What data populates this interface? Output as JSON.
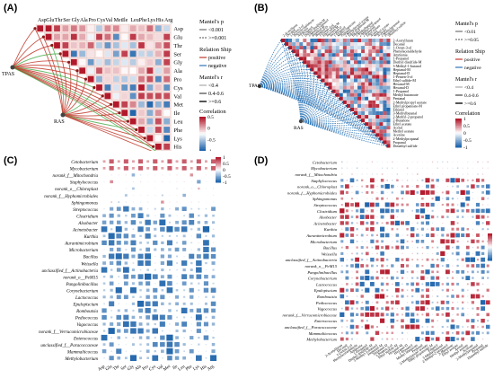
{
  "panels": {
    "A": {
      "label": "(A)",
      "column_labels": [
        "Asp",
        "Glu",
        "Thr",
        "Ser",
        "Gly",
        "Ala",
        "Pro",
        "Cys",
        "Val",
        "Met",
        "Ile",
        "Leu",
        "Phe",
        "Lys",
        "His",
        "Arg"
      ],
      "row_labels": [
        "Asp",
        "Glu",
        "Thr",
        "Ser",
        "Gly",
        "Ala",
        "Pro",
        "Cys",
        "Val",
        "Met",
        "Ile",
        "Leu",
        "Phe",
        "Lys",
        "His",
        "Arg"
      ],
      "nodes": [
        "TPAS",
        "RAS"
      ],
      "legend": {
        "mantel_p_title": "Mantel's p",
        "mantel_p_items": [
          "<0.001",
          ">=0.001"
        ],
        "relationship_title": "Relation Ship",
        "relationship_items": [
          "positive",
          "negative"
        ],
        "mantel_r_title": "Mantel's r",
        "mantel_r_items": [
          "<0.4",
          "0.4-0.6",
          ">=0.6"
        ],
        "correlation_title": "Correlation",
        "correlation_ticks": [
          "0.5",
          "0",
          "-0.5",
          "-1"
        ]
      }
    },
    "B": {
      "label": "(B)",
      "row_labels": [
        "2-Acetylfuran",
        "Decanal",
        "1-Octen-3-ol",
        "Phenylacetaldehyde",
        "Ammonia",
        "1-Propanol",
        "Diethyl disulfide-M",
        "3-Methyl-1-butanol",
        "Heptanal-M",
        "Heptanal-D",
        "1-Penten-3-ol",
        "Ethyl sulfide-M",
        "Hexanal-M",
        "Hexanal-D",
        "1-Propanol",
        "Methyl butanoate",
        "Pentanal",
        "2-Methylpropyl acetate",
        "Ethyl propanoate-M",
        "Ethanol",
        "3-Methylbutanal",
        "2-Methyl-2-propanol",
        "2-Butanone",
        "Ethyl acetate",
        "Acetal",
        "Methyl acetate",
        "Acetone",
        "2-Methylpropanal",
        "Propanal",
        "Dimethyl sulfide"
      ],
      "nodes": [
        "TPAS",
        "RAS"
      ],
      "legend": {
        "mantel_p_title": "Mantel's p",
        "mantel_p_items": [
          "<0.01",
          ">=0.05"
        ],
        "relationship_title": "Relation Ship",
        "relationship_items": [
          "positive",
          "negative"
        ],
        "mantel_r_title": "Mantel's r",
        "mantel_r_items": [
          "<0.4",
          "0.4-0.6",
          ">=0.6"
        ],
        "correlation_title": "Correlation",
        "correlation_ticks": [
          "1",
          "0.5",
          "0",
          "-0.5",
          "-1"
        ]
      }
    },
    "C": {
      "label": "(C)",
      "row_labels": [
        "Cetobacterium",
        "Mycobacterium",
        "norank_f__Mitochondria",
        "Staphylococcus",
        "norank_o__Chloroplast",
        "norank_f__Hyphomicrobiales",
        "Sphingomonas",
        "Streptococcus",
        "Clostridium",
        "Alsobacter",
        "Acinetobacter",
        "Kurthia",
        "Aurantimicrobium",
        "Microbacterium",
        "Bacillus",
        "Weissella",
        "unclassified_f__Actinobacteria",
        "norank_o__PeM15",
        "Pangolinibacillus",
        "Corynebacterium",
        "Lactococcus",
        "Epulopiscium",
        "Romboutsia",
        "Pediococcus",
        "Vagococcus",
        "norank_f__Verrucomicrobiaceae",
        "Enterococcus",
        "unclassified_f__Paracoccaceae",
        "Mammaliicoccus",
        "Methylobacterium"
      ],
      "column_labels": [
        "Asp",
        "Glu",
        "Thr",
        "Ser",
        "Gly",
        "Ala",
        "Pro",
        "Cys",
        "Val",
        "Met",
        "Ile",
        "Leu",
        "Phe",
        "Lys",
        "His",
        "Arg"
      ],
      "colorbar_ticks": [
        "1",
        "0.5",
        "0",
        "-0.5",
        "-1"
      ]
    },
    "D": {
      "label": "(D)",
      "row_labels": [
        "Cetobacterium",
        "Mycobacterium",
        "norank_f__Mitochondria",
        "Staphylococcus",
        "norank_o__Chloroplast",
        "norank_f__Hyphomicrobiales",
        "Sphingomonas",
        "Streptococcus",
        "Clostridium",
        "Alsobacter",
        "Acinetobacter",
        "Kurthia",
        "Aurantimicrobium",
        "Microbacterium",
        "Bacillus",
        "Weissella",
        "unclassified_f__Actinobacteria",
        "norank_o__PeM15",
        "Pangolinibacillus",
        "Corynebacterium",
        "Lactococcus",
        "Epulopiscium",
        "Romboutsia",
        "Pediococcus",
        "Vagococcus",
        "norank_f__Verrucomicrobiaceae",
        "Enterococcus",
        "unclassified_f__Paracoccaceae",
        "Mammaliicoccus",
        "Methylobacterium"
      ],
      "column_labels": [
        "2-Acetylfuran",
        "Decanal",
        "1-Octen-3-ol",
        "Phenylacetaldehyde",
        "Ammonia",
        "1-Propanol",
        "Diethyl disulfide-M",
        "3-Methyl-1-butanol",
        "Heptanal-M",
        "Heptanal-D",
        "1-Penten-3-ol",
        "Ethyl sulfide-M",
        "Hexanal-M",
        "Hexanal-D",
        "1-Propanol",
        "Methyl butanoate",
        "Pentanal",
        "2-Methylpropyl acetate",
        "Ethyl propanoate-M",
        "Ethanol",
        "3-Methylbutanal",
        "2-Methyl-2-propanol",
        "2-Butanone",
        "Ethyl acetate",
        "Acetal",
        "Methyl acetate",
        "Acetone",
        "2-Methylpropanal",
        "Propanal",
        "Dimethyl sulfide"
      ],
      "colorbar_ticks": [
        "1",
        "0.5",
        "0",
        "-0.5",
        "-1"
      ]
    }
  },
  "colors": {
    "positive": "#c0392b",
    "negative": "#2e75b6",
    "link_green": "#4caf50",
    "high": "#b2182b",
    "mid": "#ffffff",
    "low": "#2166ac"
  }
}
